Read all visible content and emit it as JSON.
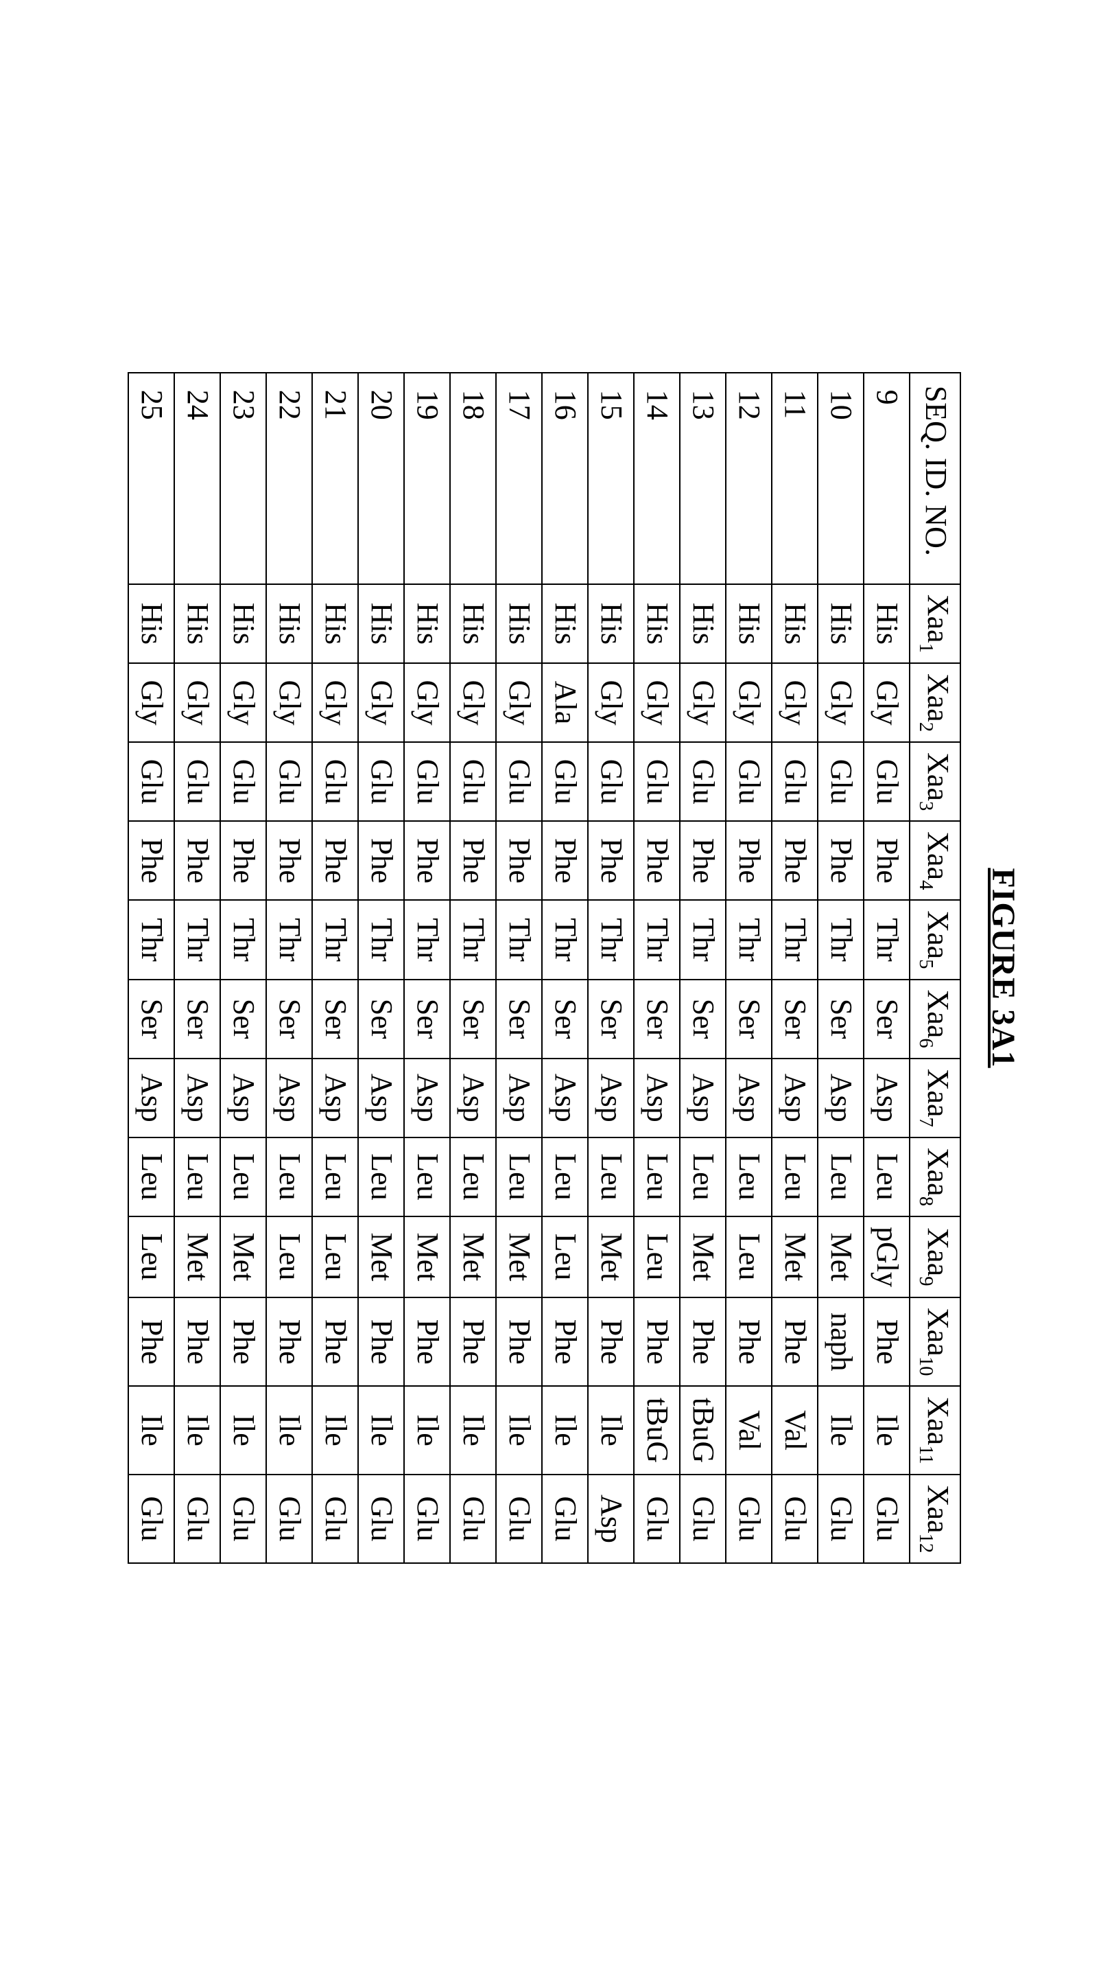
{
  "title": "FIGURE 3A1",
  "table": {
    "seq_header": "SEQ. ID. NO.",
    "col_prefix": "Xaa",
    "num_cols": 12,
    "rows": [
      {
        "seq": "9",
        "c": [
          "His",
          "Gly",
          "Glu",
          "Phe",
          "Thr",
          "Ser",
          "Asp",
          "Leu",
          "pGly",
          "Phe",
          "Ile",
          "Glu"
        ]
      },
      {
        "seq": "10",
        "c": [
          "His",
          "Gly",
          "Glu",
          "Phe",
          "Thr",
          "Ser",
          "Asp",
          "Leu",
          "Met",
          "naph",
          "Ile",
          "Glu"
        ]
      },
      {
        "seq": "11",
        "c": [
          "His",
          "Gly",
          "Glu",
          "Phe",
          "Thr",
          "Ser",
          "Asp",
          "Leu",
          "Met",
          "Phe",
          "Val",
          "Glu"
        ]
      },
      {
        "seq": "12",
        "c": [
          "His",
          "Gly",
          "Glu",
          "Phe",
          "Thr",
          "Ser",
          "Asp",
          "Leu",
          "Leu",
          "Phe",
          "Val",
          "Glu"
        ]
      },
      {
        "seq": "13",
        "c": [
          "His",
          "Gly",
          "Glu",
          "Phe",
          "Thr",
          "Ser",
          "Asp",
          "Leu",
          "Met",
          "Phe",
          "tBuG",
          "Glu"
        ]
      },
      {
        "seq": "14",
        "c": [
          "His",
          "Gly",
          "Glu",
          "Phe",
          "Thr",
          "Ser",
          "Asp",
          "Leu",
          "Leu",
          "Phe",
          "tBuG",
          "Glu"
        ]
      },
      {
        "seq": "15",
        "c": [
          "His",
          "Gly",
          "Glu",
          "Phe",
          "Thr",
          "Ser",
          "Asp",
          "Leu",
          "Met",
          "Phe",
          "Ile",
          "Asp"
        ]
      },
      {
        "seq": "16",
        "c": [
          "His",
          "Ala",
          "Glu",
          "Phe",
          "Thr",
          "Ser",
          "Asp",
          "Leu",
          "Leu",
          "Phe",
          "Ile",
          "Glu"
        ]
      },
      {
        "seq": "17",
        "c": [
          "His",
          "Gly",
          "Glu",
          "Phe",
          "Thr",
          "Ser",
          "Asp",
          "Leu",
          "Met",
          "Phe",
          "Ile",
          "Glu"
        ]
      },
      {
        "seq": "18",
        "c": [
          "His",
          "Gly",
          "Glu",
          "Phe",
          "Thr",
          "Ser",
          "Asp",
          "Leu",
          "Met",
          "Phe",
          "Ile",
          "Glu"
        ]
      },
      {
        "seq": "19",
        "c": [
          "His",
          "Gly",
          "Glu",
          "Phe",
          "Thr",
          "Ser",
          "Asp",
          "Leu",
          "Met",
          "Phe",
          "Ile",
          "Glu"
        ]
      },
      {
        "seq": "20",
        "c": [
          "His",
          "Gly",
          "Glu",
          "Phe",
          "Thr",
          "Ser",
          "Asp",
          "Leu",
          "Met",
          "Phe",
          "Ile",
          "Glu"
        ]
      },
      {
        "seq": "21",
        "c": [
          "His",
          "Gly",
          "Glu",
          "Phe",
          "Thr",
          "Ser",
          "Asp",
          "Leu",
          "Leu",
          "Phe",
          "Ile",
          "Glu"
        ]
      },
      {
        "seq": "22",
        "c": [
          "His",
          "Gly",
          "Glu",
          "Phe",
          "Thr",
          "Ser",
          "Asp",
          "Leu",
          "Leu",
          "Phe",
          "Ile",
          "Glu"
        ]
      },
      {
        "seq": "23",
        "c": [
          "His",
          "Gly",
          "Glu",
          "Phe",
          "Thr",
          "Ser",
          "Asp",
          "Leu",
          "Met",
          "Phe",
          "Ile",
          "Glu"
        ]
      },
      {
        "seq": "24",
        "c": [
          "His",
          "Gly",
          "Glu",
          "Phe",
          "Thr",
          "Ser",
          "Asp",
          "Leu",
          "Met",
          "Phe",
          "Ile",
          "Glu"
        ]
      },
      {
        "seq": "25",
        "c": [
          "His",
          "Gly",
          "Glu",
          "Phe",
          "Thr",
          "Ser",
          "Asp",
          "Leu",
          "Leu",
          "Phe",
          "Ile",
          "Glu"
        ]
      }
    ]
  }
}
